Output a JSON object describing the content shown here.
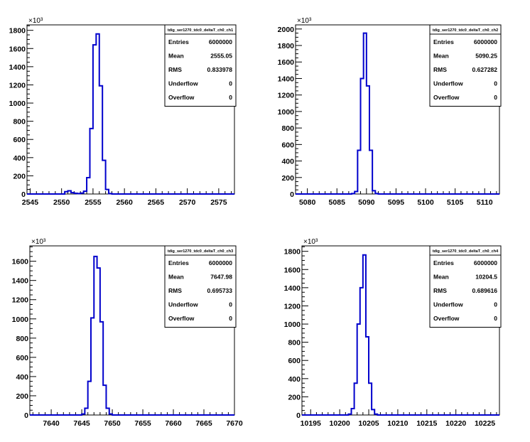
{
  "chart_data": [
    {
      "type": "histogram",
      "stats": {
        "title": "tdig_ser1270_tdc0_deltaT_ch0_ch1",
        "rows": [
          {
            "label": "Entries",
            "value": "6000000"
          },
          {
            "label": "Mean",
            "value": "2555.05"
          },
          {
            "label": "RMS",
            "value": "0.833978"
          },
          {
            "label": "Underflow",
            "value": "0"
          },
          {
            "label": "Overflow",
            "value": "0"
          }
        ]
      },
      "xlim": [
        2544.5,
        2577.5
      ],
      "ylim": [
        0,
        1860
      ],
      "y_exponent_label": "×10³",
      "x_ticks": [
        2545,
        2550,
        2555,
        2560,
        2565,
        2570,
        2575
      ],
      "y_ticks": [
        0,
        200,
        400,
        600,
        800,
        1000,
        1200,
        1400,
        1600,
        1800
      ],
      "bin_width": 0.5,
      "bins": [
        [
          2550.5,
          25
        ],
        [
          2551.0,
          35
        ],
        [
          2551.5,
          15
        ],
        [
          2552.0,
          8
        ],
        [
          2552.5,
          5
        ],
        [
          2553.0,
          10
        ],
        [
          2553.5,
          30
        ],
        [
          2554.0,
          180
        ],
        [
          2554.5,
          720
        ],
        [
          2555.0,
          1640
        ],
        [
          2555.5,
          1760
        ],
        [
          2556.0,
          1190
        ],
        [
          2556.5,
          370
        ],
        [
          2557.0,
          50
        ],
        [
          2557.5,
          5
        ]
      ]
    },
    {
      "type": "histogram",
      "stats": {
        "title": "tdig_ser1270_tdc0_deltaT_ch0_ch2",
        "rows": [
          {
            "label": "Entries",
            "value": "6000000"
          },
          {
            "label": "Mean",
            "value": "5090.25"
          },
          {
            "label": "RMS",
            "value": "0.627282"
          },
          {
            "label": "Underflow",
            "value": "0"
          },
          {
            "label": "Overflow",
            "value": "0"
          }
        ]
      },
      "xlim": [
        5078,
        5112.5
      ],
      "ylim": [
        0,
        2050
      ],
      "y_exponent_label": "×10³",
      "x_ticks": [
        5080,
        5085,
        5090,
        5095,
        5100,
        5105,
        5110
      ],
      "y_ticks": [
        0,
        200,
        400,
        600,
        800,
        1000,
        1200,
        1400,
        1600,
        1800,
        2000
      ],
      "bin_width": 0.5,
      "bins": [
        [
          5087.5,
          5
        ],
        [
          5088.0,
          30
        ],
        [
          5088.5,
          530
        ],
        [
          5089.0,
          1400
        ],
        [
          5089.5,
          1950
        ],
        [
          5090.0,
          1310
        ],
        [
          5090.5,
          530
        ],
        [
          5091.0,
          40
        ],
        [
          5091.5,
          5
        ]
      ]
    },
    {
      "type": "histogram",
      "stats": {
        "title": "tdig_ser1270_tdc0_deltaT_ch0_ch3",
        "rows": [
          {
            "label": "Entries",
            "value": "6000000"
          },
          {
            "label": "Mean",
            "value": "7647.98"
          },
          {
            "label": "RMS",
            "value": "0.695733"
          },
          {
            "label": "Underflow",
            "value": "0"
          },
          {
            "label": "Overflow",
            "value": "0"
          }
        ]
      },
      "xlim": [
        7636.5,
        7670
      ],
      "ylim": [
        0,
        1760
      ],
      "y_exponent_label": "×10³",
      "x_ticks": [
        7640,
        7645,
        7650,
        7655,
        7660,
        7665,
        7670
      ],
      "y_ticks": [
        0,
        200,
        400,
        600,
        800,
        1000,
        1200,
        1400,
        1600
      ],
      "bin_width": 0.5,
      "bins": [
        [
          7645.0,
          10
        ],
        [
          7645.5,
          70
        ],
        [
          7646.0,
          350
        ],
        [
          7646.5,
          1010
        ],
        [
          7647.0,
          1650
        ],
        [
          7647.5,
          1530
        ],
        [
          7648.0,
          970
        ],
        [
          7648.5,
          310
        ],
        [
          7649.0,
          70
        ],
        [
          7649.5,
          10
        ]
      ]
    },
    {
      "type": "histogram",
      "stats": {
        "title": "tdig_ser1270_tdc0_deltaT_ch0_ch4",
        "rows": [
          {
            "label": "Entries",
            "value": "6000000"
          },
          {
            "label": "Mean",
            "value": "10204.5"
          },
          {
            "label": "RMS",
            "value": "0.689616"
          },
          {
            "label": "Underflow",
            "value": "0"
          },
          {
            "label": "Overflow",
            "value": "0"
          }
        ]
      },
      "xlim": [
        10193.5,
        10227.5
      ],
      "ylim": [
        0,
        1860
      ],
      "y_exponent_label": "×10³",
      "x_ticks": [
        10195,
        10200,
        10205,
        10210,
        10215,
        10220,
        10225
      ],
      "y_ticks": [
        0,
        200,
        400,
        600,
        800,
        1000,
        1200,
        1400,
        1600,
        1800
      ],
      "bin_width": 0.5,
      "bins": [
        [
          10201.5,
          10
        ],
        [
          10202.0,
          70
        ],
        [
          10202.5,
          350
        ],
        [
          10203.0,
          1000
        ],
        [
          10203.5,
          1400
        ],
        [
          10204.0,
          1760
        ],
        [
          10204.5,
          860
        ],
        [
          10205.0,
          350
        ],
        [
          10205.5,
          60
        ],
        [
          10206.0,
          10
        ]
      ]
    }
  ],
  "colors": {
    "line": "#0000cc",
    "axis": "#000000",
    "background": "#ffffff"
  }
}
